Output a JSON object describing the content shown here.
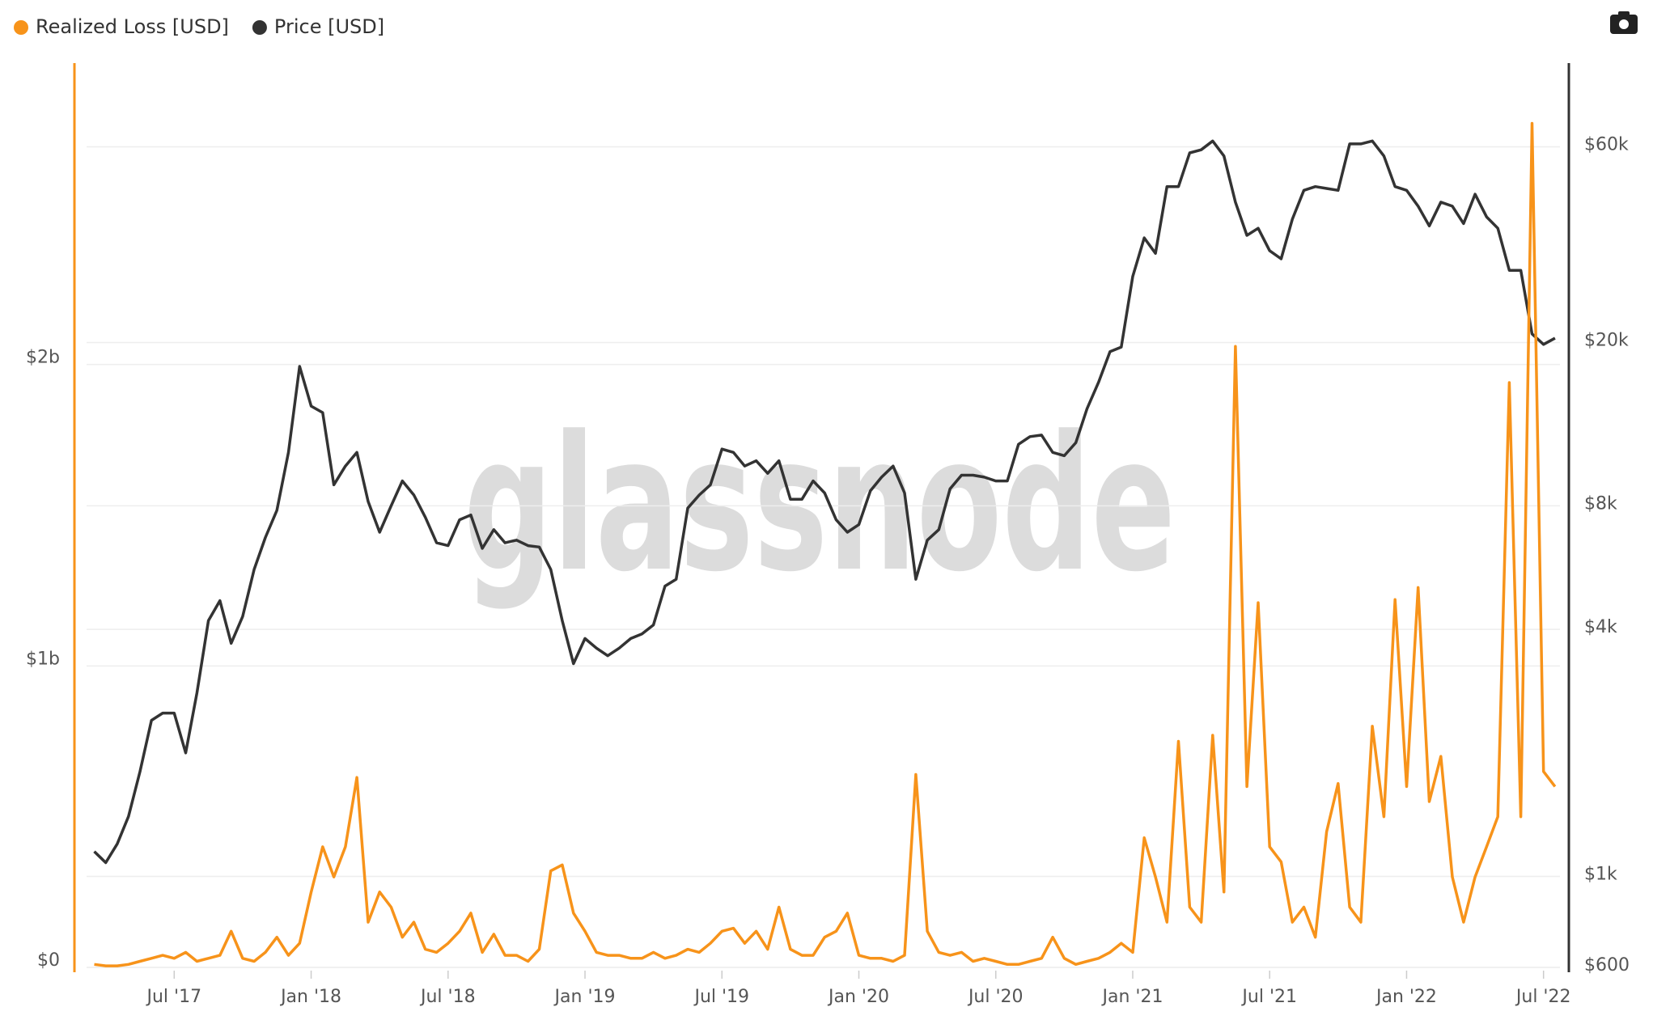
{
  "chart_data": {
    "type": "line",
    "watermark": "glassnode",
    "x": [
      2017.208,
      2017.25,
      2017.292,
      2017.333,
      2017.375,
      2017.417,
      2017.458,
      2017.5,
      2017.542,
      2017.583,
      2017.625,
      2017.667,
      2017.708,
      2017.75,
      2017.792,
      2017.833,
      2017.875,
      2017.917,
      2017.958,
      2018,
      2018.042,
      2018.083,
      2018.125,
      2018.167,
      2018.208,
      2018.25,
      2018.292,
      2018.333,
      2018.375,
      2018.417,
      2018.458,
      2018.5,
      2018.542,
      2018.583,
      2018.625,
      2018.667,
      2018.708,
      2018.75,
      2018.792,
      2018.833,
      2018.875,
      2018.917,
      2018.958,
      2019,
      2019.042,
      2019.083,
      2019.125,
      2019.167,
      2019.208,
      2019.25,
      2019.292,
      2019.333,
      2019.375,
      2019.417,
      2019.458,
      2019.5,
      2019.542,
      2019.583,
      2019.625,
      2019.667,
      2019.708,
      2019.75,
      2019.792,
      2019.833,
      2019.875,
      2019.917,
      2019.958,
      2020,
      2020.042,
      2020.083,
      2020.125,
      2020.167,
      2020.208,
      2020.25,
      2020.292,
      2020.333,
      2020.375,
      2020.417,
      2020.458,
      2020.5,
      2020.542,
      2020.583,
      2020.625,
      2020.667,
      2020.708,
      2020.75,
      2020.792,
      2020.833,
      2020.875,
      2020.917,
      2020.958,
      2021,
      2021.042,
      2021.083,
      2021.125,
      2021.167,
      2021.208,
      2021.25,
      2021.292,
      2021.333,
      2021.375,
      2021.417,
      2021.458,
      2021.5,
      2021.542,
      2021.583,
      2021.625,
      2021.667,
      2021.708,
      2021.75,
      2021.792,
      2021.833,
      2021.875,
      2021.917,
      2021.958,
      2022,
      2022.042,
      2022.083,
      2022.125,
      2022.167,
      2022.208,
      2022.25,
      2022.292,
      2022.333,
      2022.375,
      2022.417,
      2022.458,
      2022.5,
      2022.542
    ],
    "xlim": [
      2017.18,
      2022.56
    ],
    "xticks": [
      {
        "value": 2017.5,
        "label": "Jul '17"
      },
      {
        "value": 2018,
        "label": "Jan '18"
      },
      {
        "value": 2018.5,
        "label": "Jul '18"
      },
      {
        "value": 2019,
        "label": "Jan '19"
      },
      {
        "value": 2019.5,
        "label": "Jul '19"
      },
      {
        "value": 2020,
        "label": "Jan '20"
      },
      {
        "value": 2020.5,
        "label": "Jul '20"
      },
      {
        "value": 2021,
        "label": "Jan '21"
      },
      {
        "value": 2021.5,
        "label": "Jul '21"
      },
      {
        "value": 2022,
        "label": "Jan '22"
      },
      {
        "value": 2022.5,
        "label": "Jul '22"
      }
    ],
    "ylim": [
      0,
      3000000000
    ],
    "yticks": [
      {
        "value": 0,
        "label": "$0"
      },
      {
        "value": 1000000000,
        "label": "$1b"
      },
      {
        "value": 2000000000,
        "label": "$2b"
      }
    ],
    "y2lim": [
      600,
      96000
    ],
    "y2_log": true,
    "y2ticks": [
      {
        "value": 600,
        "label": "$600"
      },
      {
        "value": 1000,
        "label": "$1k"
      },
      {
        "value": 4000,
        "label": "$4k"
      },
      {
        "value": 8000,
        "label": "$8k"
      },
      {
        "value": 20000,
        "label": "$20k"
      },
      {
        "value": 60000,
        "label": "$60k"
      }
    ],
    "grid": true,
    "legend": "top-left",
    "series": [
      {
        "name": "Realized Loss [USD]",
        "color": "#f7931a",
        "axis": "y",
        "values": [
          10000000.0,
          5000000.0,
          5000000.0,
          10000000.0,
          20000000.0,
          30000000.0,
          40000000.0,
          30000000.0,
          50000000.0,
          20000000.0,
          30000000.0,
          40000000.0,
          120000000.0,
          30000000.0,
          20000000.0,
          50000000.0,
          100000000.0,
          40000000.0,
          80000000.0,
          250000000.0,
          400000000.0,
          300000000.0,
          400000000.0,
          630000000.0,
          150000000.0,
          250000000.0,
          200000000.0,
          100000000.0,
          150000000.0,
          60000000.0,
          50000000.0,
          80000000.0,
          120000000.0,
          180000000.0,
          50000000.0,
          110000000.0,
          40000000.0,
          40000000.0,
          20000000.0,
          60000000.0,
          320000000.0,
          340000000.0,
          180000000.0,
          120000000.0,
          50000000.0,
          40000000.0,
          40000000.0,
          30000000.0,
          30000000.0,
          50000000.0,
          30000000.0,
          40000000.0,
          60000000.0,
          50000000.0,
          80000000.0,
          120000000.0,
          130000000.0,
          80000000.0,
          120000000.0,
          60000000.0,
          200000000.0,
          60000000.0,
          40000000.0,
          40000000.0,
          100000000.0,
          120000000.0,
          180000000.0,
          40000000.0,
          30000000.0,
          30000000.0,
          20000000.0,
          40000000.0,
          640000000.0,
          120000000.0,
          50000000.0,
          40000000.0,
          50000000.0,
          20000000.0,
          30000000.0,
          20000000.0,
          10000000.0,
          10000000.0,
          20000000.0,
          30000000.0,
          100000000.0,
          30000000.0,
          10000000.0,
          20000000.0,
          30000000.0,
          50000000.0,
          80000000.0,
          50000000.0,
          430000000.0,
          300000000.0,
          150000000.0,
          750000000.0,
          200000000.0,
          150000000.0,
          770000000.0,
          250000000.0,
          2060000000.0,
          600000000.0,
          1210000000.0,
          400000000.0,
          350000000.0,
          150000000.0,
          200000000.0,
          100000000.0,
          450000000.0,
          610000000.0,
          200000000.0,
          150000000.0,
          800000000.0,
          500000000.0,
          1220000000.0,
          600000000.0,
          1260000000.0,
          550000000.0,
          700000000.0,
          300000000.0,
          150000000.0,
          300000000.0,
          400000000.0,
          500000000.0,
          1940000000.0,
          500000000.0,
          2800000000.0,
          650000000.0,
          600000000.0
        ]
      },
      {
        "name": "Price [USD]",
        "color": "#333333",
        "axis": "y2",
        "values": [
          1150,
          1080,
          1200,
          1400,
          1800,
          2400,
          2500,
          2500,
          2000,
          2800,
          4200,
          4700,
          3700,
          4300,
          5600,
          6700,
          7800,
          10800,
          17500,
          14000,
          13500,
          9000,
          10000,
          10800,
          8200,
          6900,
          8000,
          9200,
          8500,
          7500,
          6500,
          6400,
          7400,
          7600,
          6300,
          7000,
          6500,
          6600,
          6400,
          6350,
          5600,
          4200,
          3300,
          3800,
          3600,
          3450,
          3600,
          3800,
          3900,
          4100,
          5100,
          5300,
          7900,
          8500,
          9000,
          11000,
          10800,
          10000,
          10300,
          9600,
          10300,
          8300,
          8300,
          9200,
          8600,
          7400,
          6900,
          7200,
          8700,
          9400,
          10000,
          8600,
          5300,
          6600,
          7000,
          8800,
          9500,
          9500,
          9400,
          9200,
          9200,
          11300,
          11800,
          11900,
          10800,
          10600,
          11400,
          13800,
          16000,
          19000,
          19500,
          29000,
          36000,
          33000,
          48000,
          48000,
          58000,
          59000,
          62000,
          57000,
          44000,
          36500,
          38000,
          33500,
          32000,
          40000,
          47000,
          48000,
          47500,
          47000,
          61000,
          61000,
          62000,
          57000,
          48000,
          47000,
          43000,
          38500,
          44000,
          43000,
          39000,
          46000,
          40500,
          38000,
          30000,
          30000,
          21000,
          19800,
          20500
        ]
      }
    ]
  }
}
